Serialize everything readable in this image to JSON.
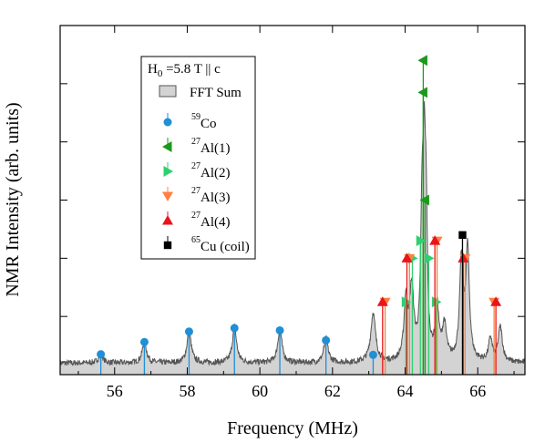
{
  "chart_data": {
    "type": "line",
    "xlabel": "Frequency (MHz)",
    "ylabel": "NMR Intensity (arb. units)",
    "xlim": [
      54.5,
      67.3
    ],
    "ylim": [
      0,
      6
    ],
    "x_ticks": [
      56,
      58,
      60,
      62,
      64,
      66
    ],
    "x_tick_labels": [
      "56",
      "58",
      "60",
      "62",
      "64",
      "66"
    ],
    "grid": false,
    "legend_position": "top-left",
    "legend_title": "H0 = 5.8 T || c",
    "legend_title_parts": {
      "main": "H",
      "sub": "0",
      "rest": " =5.8 T || c"
    },
    "baseline": 0.2,
    "fft_sum": {
      "name": "FFT Sum",
      "peaks": [
        {
          "x": 55.62,
          "h": 0.15,
          "w": 0.07
        },
        {
          "x": 56.82,
          "h": 0.36,
          "w": 0.07
        },
        {
          "x": 58.05,
          "h": 0.55,
          "w": 0.07
        },
        {
          "x": 59.3,
          "h": 0.62,
          "w": 0.07
        },
        {
          "x": 60.55,
          "h": 0.58,
          "w": 0.07
        },
        {
          "x": 61.82,
          "h": 0.42,
          "w": 0.07
        },
        {
          "x": 63.12,
          "h": 0.85,
          "w": 0.08
        },
        {
          "x": 64.02,
          "h": 1.0,
          "w": 0.06
        },
        {
          "x": 64.18,
          "h": 1.2,
          "w": 0.07
        },
        {
          "x": 64.47,
          "h": 2.4,
          "w": 0.05
        },
        {
          "x": 64.53,
          "h": 2.6,
          "w": 0.04
        },
        {
          "x": 64.58,
          "h": 2.0,
          "w": 0.04
        },
        {
          "x": 64.88,
          "h": 0.9,
          "w": 0.06
        },
        {
          "x": 65.08,
          "h": 0.6,
          "w": 0.07
        },
        {
          "x": 65.55,
          "h": 1.7,
          "w": 0.06
        },
        {
          "x": 65.72,
          "h": 1.9,
          "w": 0.06
        },
        {
          "x": 66.35,
          "h": 0.4,
          "w": 0.06
        },
        {
          "x": 66.62,
          "h": 0.6,
          "w": 0.07
        }
      ],
      "color": "#d3d3d3",
      "stroke": "#555555"
    },
    "series": [
      {
        "name": "59Co",
        "iso": "59",
        "label": "Co",
        "marker": "circle",
        "color": "#1f8fd6",
        "points": [
          [
            55.62,
            0.35
          ],
          [
            56.82,
            0.56
          ],
          [
            58.05,
            0.74
          ],
          [
            59.3,
            0.8
          ],
          [
            60.55,
            0.76
          ],
          [
            61.82,
            0.59
          ],
          [
            63.12,
            0.34
          ]
        ]
      },
      {
        "name": "27Al(1)",
        "iso": "27",
        "label": "Al(1)",
        "marker": "triangle-left",
        "color": "#1a9a1a",
        "points": [
          [
            64.5,
            5.4
          ],
          [
            64.5,
            4.85
          ],
          [
            64.55,
            3.0
          ]
        ]
      },
      {
        "name": "27Al(2)",
        "iso": "27",
        "label": "Al(2)",
        "marker": "triangle-right",
        "color": "#2fd070",
        "points": [
          [
            64.2,
            2.0
          ],
          [
            64.65,
            2.0
          ],
          [
            64.02,
            1.25
          ],
          [
            64.85,
            1.25
          ],
          [
            64.42,
            2.3
          ]
        ]
      },
      {
        "name": "27Al(3)",
        "iso": "27",
        "label": "Al(3)",
        "marker": "triangle-down",
        "color": "#ff8040",
        "points": [
          [
            63.45,
            1.25
          ],
          [
            64.12,
            2.0
          ],
          [
            64.88,
            2.3
          ],
          [
            65.65,
            2.0
          ],
          [
            66.45,
            1.25
          ]
        ]
      },
      {
        "name": "27Al(4)",
        "iso": "27",
        "label": "Al(4)",
        "marker": "triangle-up",
        "color": "#e8141a",
        "points": [
          [
            63.38,
            1.25
          ],
          [
            64.05,
            2.0
          ],
          [
            64.82,
            2.3
          ],
          [
            65.6,
            2.0
          ],
          [
            66.5,
            1.25
          ]
        ]
      },
      {
        "name": "65Cu (coil)",
        "iso": "65",
        "label": "Cu (coil)",
        "marker": "square",
        "color": "#000000",
        "points": [
          [
            65.58,
            2.4
          ]
        ]
      }
    ]
  }
}
